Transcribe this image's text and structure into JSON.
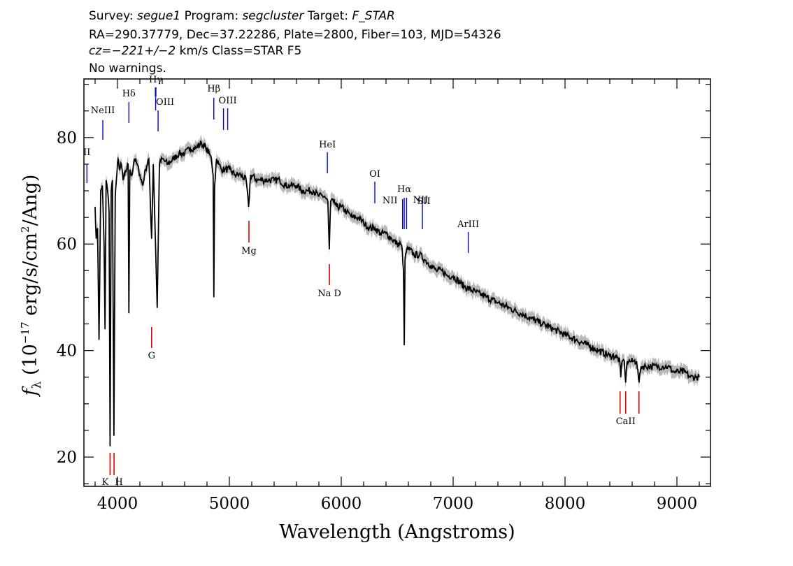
{
  "header": {
    "line1": [
      {
        "text": "Survey: ",
        "italic": false
      },
      {
        "text": "segue1",
        "italic": true
      },
      {
        "text": " Program: ",
        "italic": false
      },
      {
        "text": "segcluster",
        "italic": true
      },
      {
        "text": " Target: ",
        "italic": false
      },
      {
        "text": "F_STAR",
        "italic": true
      }
    ],
    "line2": "RA=290.37779, Dec=37.22286, Plate=2800, Fiber=103, MJD=54326",
    "line3": [
      {
        "text": "cz=",
        "italic": true
      },
      {
        "text": "−221+/−2",
        "italic": true
      },
      {
        "text": " km/s Class=STAR F5",
        "italic": false
      }
    ],
    "line4": "No warnings."
  },
  "colors": {
    "flux": "#000000",
    "error_band": "#b8b8b8",
    "emission": "#0000cc",
    "absorption": "#dd0000"
  },
  "chart_data": {
    "type": "line",
    "xlabel": "Wavelength (Angstroms)",
    "ylabel": "fλ (10⁻¹⁷ erg/s/cm²/Ang)",
    "ylabel_parts": {
      "f": "f",
      "sub": "λ",
      "rest1": " (10",
      "sup1": "−17",
      "rest2": " erg/s/cm",
      "sup2": "2",
      "rest3": "/Ang)"
    },
    "xlim": [
      3700,
      9300
    ],
    "ylim": [
      14.5,
      91
    ],
    "x_ticks": [
      4000,
      5000,
      6000,
      7000,
      8000,
      9000
    ],
    "x_tick_labels": [
      "4000",
      "5000",
      "6000",
      "7000",
      "8000",
      "9000"
    ],
    "y_ticks": [
      20,
      40,
      60,
      80
    ],
    "y_tick_labels": [
      "20",
      "40",
      "60",
      "80"
    ],
    "grid": false,
    "series": [
      {
        "x": [
          3800,
          3810,
          3822,
          3835,
          3850,
          3865,
          3880,
          3889,
          3898,
          3912,
          3925,
          3934,
          3944,
          3955,
          3968,
          3980,
          3990,
          4005,
          4020,
          4035,
          4050,
          4065,
          4080,
          4095,
          4102,
          4110,
          4130,
          4150,
          4175,
          4200,
          4226,
          4250,
          4280,
          4305,
          4320,
          4340,
          4355,
          4375,
          4400,
          4450,
          4500,
          4550,
          4600,
          4650,
          4700,
          4750,
          4790,
          4820,
          4840,
          4855,
          4861,
          4868,
          4885,
          4905,
          4930,
          4960,
          5000,
          5050,
          5100,
          5150,
          5172,
          5190,
          5250,
          5300,
          5350,
          5400,
          5450,
          5500,
          5550,
          5600,
          5650,
          5700,
          5750,
          5800,
          5850,
          5880,
          5893,
          5905,
          5930,
          5960,
          6000,
          6050,
          6100,
          6150,
          6200,
          6250,
          6300,
          6350,
          6400,
          6450,
          6500,
          6530,
          6545,
          6556,
          6563,
          6570,
          6585,
          6610,
          6650,
          6700,
          6750,
          6800,
          6850,
          6900,
          6950,
          7000,
          7100,
          7200,
          7300,
          7400,
          7500,
          7600,
          7700,
          7800,
          7900,
          8000,
          8100,
          8200,
          8300,
          8400,
          8450,
          8490,
          8498,
          8510,
          8530,
          8542,
          8555,
          8580,
          8610,
          8640,
          8662,
          8680,
          8720,
          8770,
          8820,
          8870,
          8920,
          8970,
          9020,
          9070,
          9120,
          9170,
          9200
        ],
        "y": [
          67,
          61,
          63,
          42,
          70,
          71,
          60,
          44,
          72,
          70,
          66,
          22,
          70,
          72,
          24,
          69,
          72,
          76,
          74,
          75,
          72,
          73,
          74,
          75,
          47,
          74,
          73,
          76,
          75,
          73,
          71,
          74,
          76,
          61,
          75,
          60,
          48,
          75,
          76,
          75,
          76,
          77,
          77,
          78,
          78,
          79,
          78,
          77,
          76,
          73,
          50,
          71,
          76,
          75,
          74,
          74,
          74,
          73,
          73,
          72,
          67,
          73,
          72,
          72,
          72,
          72,
          72,
          71,
          71,
          71,
          70,
          70,
          70,
          69,
          69,
          68,
          59,
          68,
          68,
          67,
          67,
          66,
          65,
          65,
          64,
          63,
          63,
          62,
          62,
          61,
          60,
          60,
          59,
          55,
          41,
          57,
          59,
          59,
          58,
          58,
          57,
          56,
          55,
          55,
          54,
          54,
          52,
          51,
          50,
          49,
          48,
          47,
          46,
          45,
          44,
          43,
          42,
          41,
          40,
          39,
          39,
          38,
          35,
          38,
          38,
          34,
          38,
          38,
          38,
          38,
          34,
          37,
          37,
          37,
          37,
          37,
          37,
          36,
          36,
          36,
          35,
          35,
          35
        ]
      }
    ],
    "emission_lines": [
      {
        "label": "OII",
        "label_text": "II",
        "x": 3727
      },
      {
        "label": "NeIII",
        "x": 3869
      },
      {
        "label": "Hδ",
        "x": 4102
      },
      {
        "label": "Hγ",
        "x": 4341
      },
      {
        "label": "OIII",
        "x": 4363
      },
      {
        "label": "Hβ",
        "x": 4861
      },
      {
        "label": "OIII",
        "x": 4985
      },
      {
        "label": "HeI",
        "x": 5876
      },
      {
        "label": "OI",
        "x": 6300
      },
      {
        "label": "NII",
        "x": 6548
      },
      {
        "label": "Hα",
        "x": 6563
      },
      {
        "label": "NII",
        "x": 6584
      },
      {
        "label": "SII",
        "x": 6725
      },
      {
        "label": "ArIII",
        "x": 7135
      }
    ],
    "absorption_lines": [
      {
        "label": "K",
        "x": 3934
      },
      {
        "label": "H",
        "x": 3969
      },
      {
        "label": "G",
        "x": 4305
      },
      {
        "label": "Mg",
        "x": 5175
      },
      {
        "label": "Na D",
        "label_text": "Na  D",
        "x": 5894
      },
      {
        "label": "CaII",
        "x": 8542
      }
    ]
  }
}
